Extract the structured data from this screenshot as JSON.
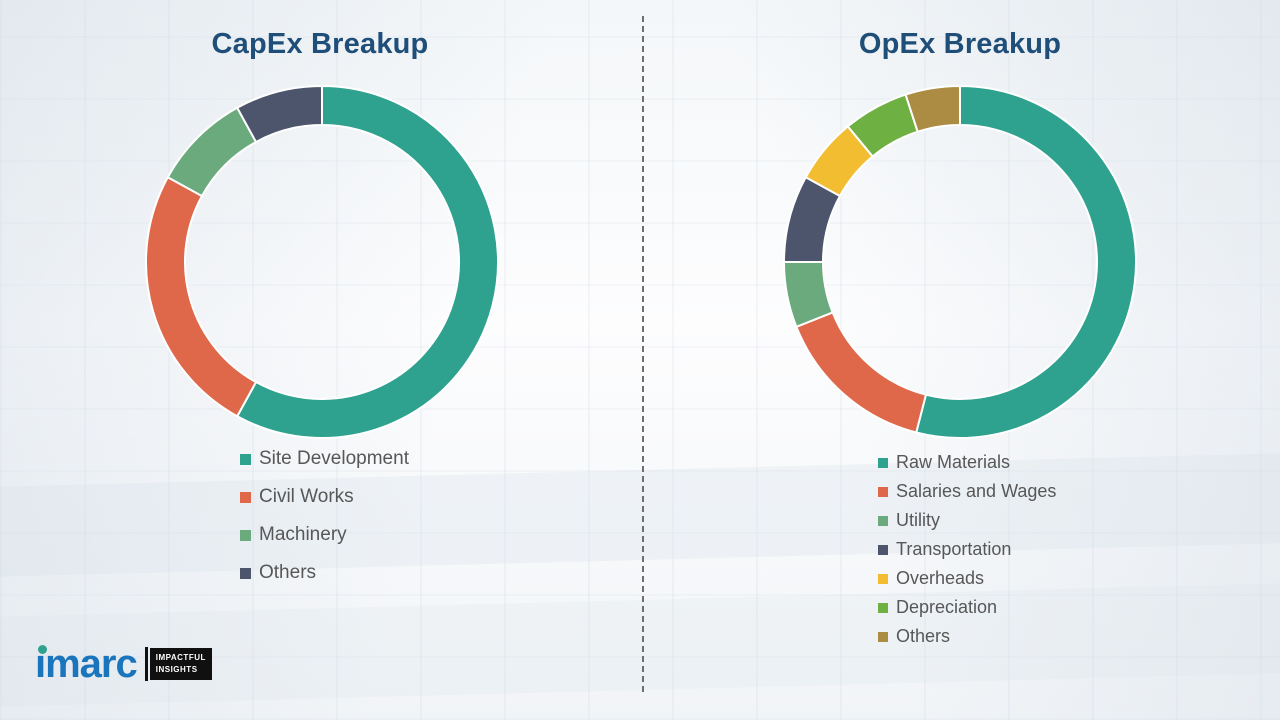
{
  "page": {
    "background_color": "#f5f7f9",
    "divider_style": "vertical-dashed"
  },
  "chart_data": [
    {
      "type": "pie",
      "subtype": "donut",
      "title": "CapEx Breakup",
      "categories": [
        "Site Development",
        "Civil Works",
        "Machinery",
        "Others"
      ],
      "values": [
        58,
        25,
        9,
        8
      ],
      "unit": "percent-estimated",
      "colors": [
        "#2EA28E",
        "#DF684A",
        "#6AAA7D",
        "#4C556C"
      ],
      "legend_position": "below-chart-left",
      "data_labels": false,
      "start_angle": "top",
      "direction": "clockwise"
    },
    {
      "type": "pie",
      "subtype": "donut",
      "title": "OpEx Breakup",
      "categories": [
        "Raw Materials",
        "Salaries and Wages",
        "Utility",
        "Transportation",
        "Overheads",
        "Depreciation",
        "Others"
      ],
      "values": [
        54,
        15,
        6,
        8,
        6,
        6,
        5
      ],
      "unit": "percent-estimated",
      "colors": [
        "#2EA28E",
        "#DF684A",
        "#6AAA7D",
        "#4C556C",
        "#F2BD30",
        "#6FB042",
        "#AC8C42"
      ],
      "legend_position": "below-chart-left",
      "data_labels": false,
      "start_angle": "top",
      "direction": "clockwise"
    }
  ],
  "logo": {
    "wordmark": "imarc",
    "wordmark_dotless": "ımarc",
    "tagline_line1": "IMPACTFUL",
    "tagline_line2": "INSIGHTS"
  },
  "colors": {
    "title_navy": "#1F4E79",
    "legend_text": "#575757",
    "divider_gray": "#6e6e6e",
    "wordmark_blue": "#1B75BC",
    "logo_dot_teal": "#2EA28E",
    "tagline_box": "#101010"
  }
}
